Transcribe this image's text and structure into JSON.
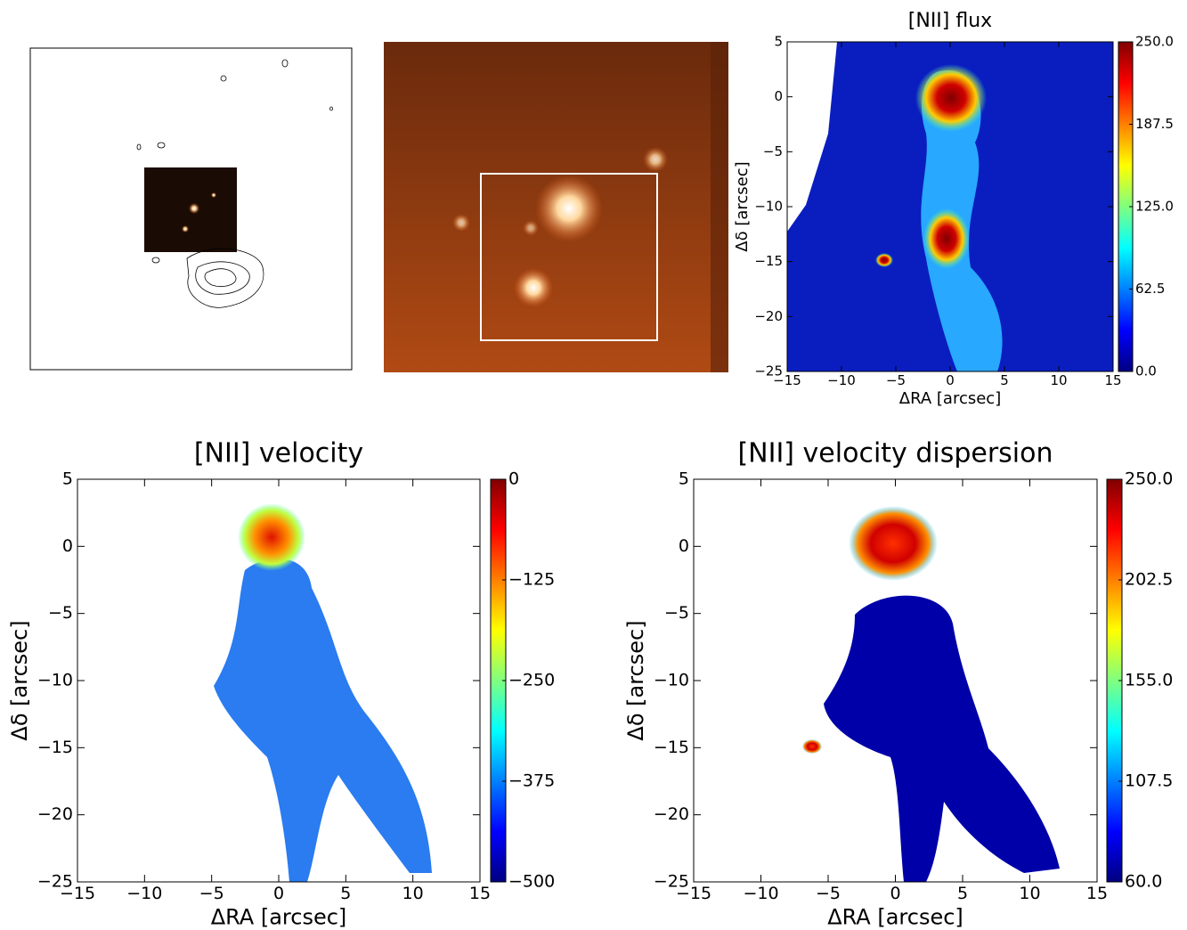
{
  "chart_data": [
    {
      "type": "heatmap",
      "title": "[NII] flux",
      "xlabel": "ΔRA [arcsec]",
      "ylabel": "Δδ [arcsec]",
      "xlim": [
        -15,
        15
      ],
      "ylim": [
        -25,
        5
      ],
      "xticks": [
        {
          "value": -15,
          "label": "−15"
        },
        {
          "value": -10,
          "label": "−10"
        },
        {
          "value": -5,
          "label": "−5"
        },
        0,
        5,
        10,
        15
      ],
      "yticks": [
        {
          "value": -25,
          "label": "−25"
        },
        {
          "value": -20,
          "label": "−20"
        },
        {
          "value": -15,
          "label": "−15"
        },
        {
          "value": -10,
          "label": "−10"
        },
        {
          "value": -5,
          "label": "−5"
        },
        0,
        5
      ],
      "clim": [
        0,
        250
      ],
      "cticks": [
        {
          "value": 0,
          "label": "0.0"
        },
        62.5,
        {
          "value": 125,
          "label": "125.0"
        },
        187.5,
        {
          "value": 250,
          "label": "250.0"
        }
      ],
      "colormap": "jet"
    },
    {
      "type": "heatmap",
      "title": "[NII] velocity",
      "xlabel": "ΔRA [arcsec]",
      "ylabel": "Δδ [arcsec]",
      "xlim": [
        -15,
        15
      ],
      "ylim": [
        -25,
        5
      ],
      "xticks": [
        {
          "value": -15,
          "label": "−15"
        },
        {
          "value": -10,
          "label": "−10"
        },
        {
          "value": -5,
          "label": "−5"
        },
        0,
        5,
        10,
        15
      ],
      "yticks": [
        {
          "value": -25,
          "label": "−25"
        },
        {
          "value": -20,
          "label": "−20"
        },
        {
          "value": -15,
          "label": "−15"
        },
        {
          "value": -10,
          "label": "−10"
        },
        {
          "value": -5,
          "label": "−5"
        },
        0,
        5
      ],
      "clim": [
        -500,
        0
      ],
      "cticks": [
        {
          "value": -500,
          "label": "−500"
        },
        {
          "value": -375,
          "label": "−375"
        },
        {
          "value": -250,
          "label": "−250"
        },
        {
          "value": -125,
          "label": "−125"
        },
        0
      ],
      "colormap": "jet"
    },
    {
      "type": "heatmap",
      "title": "[NII] velocity dispersion",
      "xlabel": "ΔRA [arcsec]",
      "ylabel": "Δδ [arcsec]",
      "xlim": [
        -15,
        15
      ],
      "ylim": [
        -25,
        5
      ],
      "xticks": [
        {
          "value": -15,
          "label": "−15"
        },
        {
          "value": -10,
          "label": "−10"
        },
        {
          "value": -5,
          "label": "−5"
        },
        0,
        5,
        10,
        15
      ],
      "yticks": [
        {
          "value": -25,
          "label": "−25"
        },
        {
          "value": -20,
          "label": "−20"
        },
        {
          "value": -15,
          "label": "−15"
        },
        {
          "value": -10,
          "label": "−10"
        },
        {
          "value": -5,
          "label": "−5"
        },
        0,
        5
      ],
      "clim": [
        60,
        250
      ],
      "cticks": [
        {
          "value": 60,
          "label": "60.0"
        },
        107.5,
        {
          "value": 155,
          "label": "155.0"
        },
        202.5,
        {
          "value": 250,
          "label": "250.0"
        }
      ],
      "colormap": "jet"
    }
  ]
}
